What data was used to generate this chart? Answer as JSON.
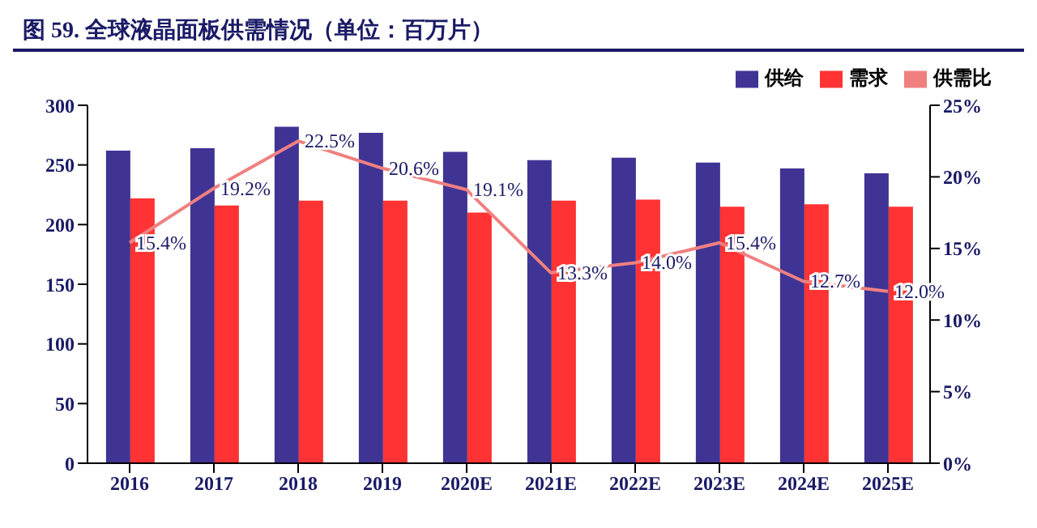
{
  "chart_data": {
    "type": "bar",
    "title": "图 59. 全球液晶面板供需情况（单位：百万片）",
    "categories": [
      "2016",
      "2017",
      "2018",
      "2019",
      "2020E",
      "2021E",
      "2022E",
      "2023E",
      "2024E",
      "2025E"
    ],
    "series": [
      {
        "name": "供给",
        "color": "#3f3494",
        "values": [
          262,
          264,
          282,
          277,
          261,
          254,
          256,
          252,
          247,
          243
        ]
      },
      {
        "name": "需求",
        "color": "#ff3333",
        "values": [
          222,
          216,
          220,
          220,
          210,
          220,
          221,
          215,
          217,
          215
        ]
      },
      {
        "name": "供需比",
        "type": "line",
        "axis": "y2",
        "color": "#f08080",
        "values": [
          15.4,
          19.2,
          22.5,
          20.6,
          19.1,
          13.3,
          14.0,
          15.4,
          12.7,
          12.0
        ],
        "value_labels": [
          "15.4%",
          "19.2%",
          "22.5%",
          "20.6%",
          "19.1%",
          "13.3%",
          "14.0%",
          "15.4%",
          "12.7%",
          "12.0%"
        ]
      }
    ],
    "ylim": [
      0,
      300
    ],
    "yticks": [
      0,
      50,
      100,
      150,
      200,
      250,
      300
    ],
    "y2lim": [
      0,
      25
    ],
    "y2ticks": [
      {
        "value": 0,
        "label": "0%"
      },
      {
        "value": 5,
        "label": "5%"
      },
      {
        "value": 10,
        "label": "10%"
      },
      {
        "value": 15,
        "label": "15%"
      },
      {
        "value": 20,
        "label": "20%"
      },
      {
        "value": 25,
        "label": "25%"
      }
    ],
    "grid": false,
    "legend": "top right",
    "marker": "none"
  }
}
